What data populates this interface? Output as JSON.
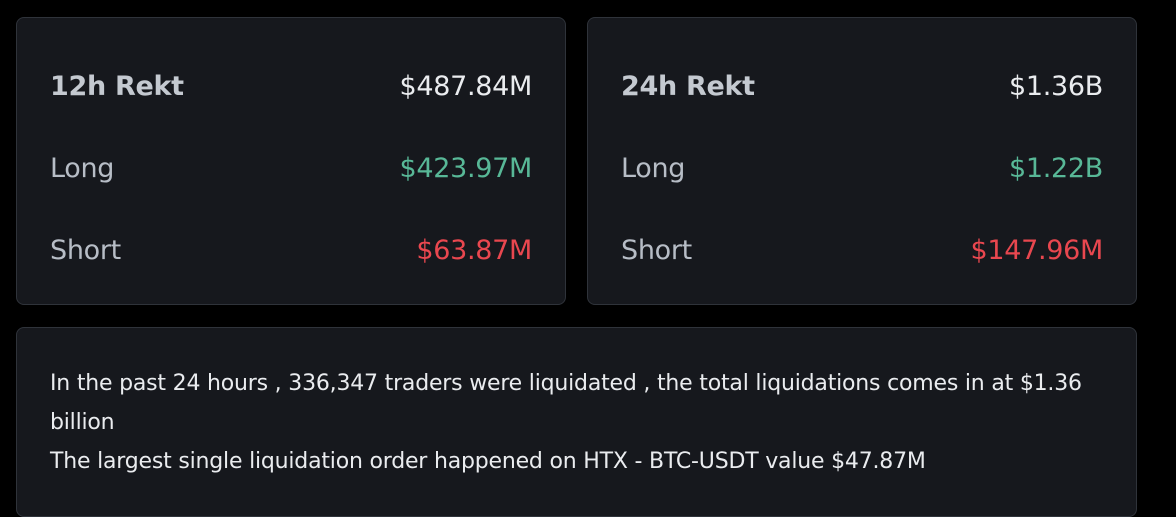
{
  "cards": [
    {
      "title": "12h Rekt",
      "total": "$487.84M",
      "long_label": "Long",
      "long": "$423.97M",
      "short_label": "Short",
      "short": "$63.87M"
    },
    {
      "title": "24h Rekt",
      "total": "$1.36B",
      "long_label": "Long",
      "long": "$1.22B",
      "short_label": "Short",
      "short": "$147.96M"
    }
  ],
  "summary": {
    "lines": [
      "In the past 24 hours , 336,347 traders were liquidated , the total liquidations comes in at $1.36 billion",
      "The largest single liquidation order happened on HTX - BTC-USDT value $47.87M"
    ]
  }
}
